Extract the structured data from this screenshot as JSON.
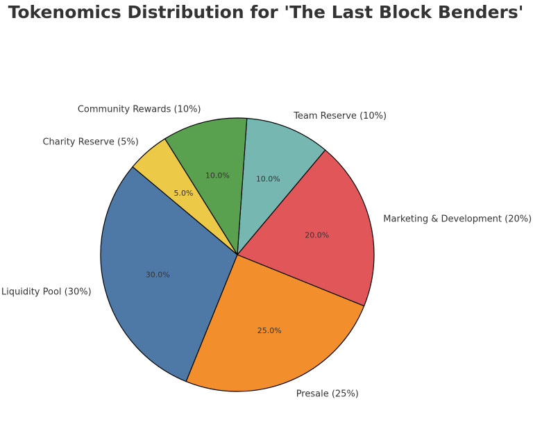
{
  "chart_data": {
    "type": "pie",
    "title": "Tokenomics Distribution for 'The Last Block Benders'",
    "slices": [
      {
        "label": "Liquidity Pool (30%)",
        "value": 30,
        "pct_text": "30.0%",
        "color": "#4e79a7"
      },
      {
        "label": "Presale (25%)",
        "value": 25,
        "pct_text": "25.0%",
        "color": "#f28e2b"
      },
      {
        "label": "Marketing & Development (20%)",
        "value": 20,
        "pct_text": "20.0%",
        "color": "#e15759"
      },
      {
        "label": "Team Reserve (10%)",
        "value": 10,
        "pct_text": "10.0%",
        "color": "#76b7b2"
      },
      {
        "label": "Community Rewards (10%)",
        "value": 10,
        "pct_text": "10.0%",
        "color": "#59a14f"
      },
      {
        "label": "Charity Reserve (5%)",
        "value": 5,
        "pct_text": "5.0%",
        "color": "#edc948"
      }
    ],
    "start_angle_deg": 140,
    "direction": "counterclockwise",
    "edge_color": "#000000"
  }
}
